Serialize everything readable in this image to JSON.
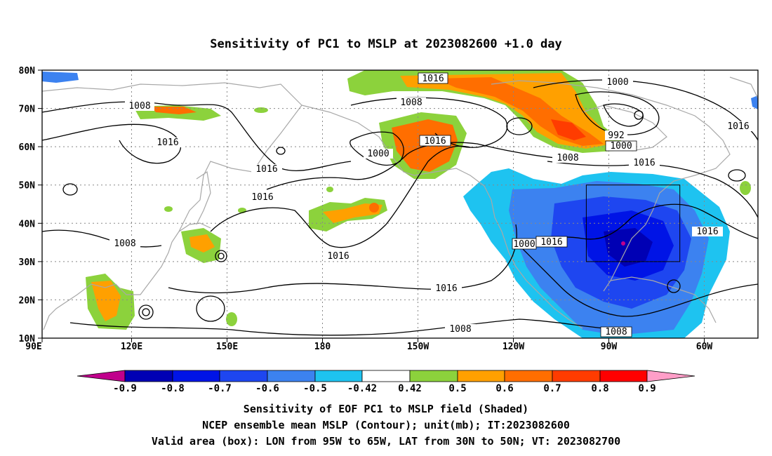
{
  "title": "Sensitivity of PC1 to MSLP at 2023082600 +1.0 day",
  "map": {
    "lon_ticks": [
      "90E",
      "120E",
      "150E",
      "180",
      "150W",
      "120W",
      "90W",
      "60W"
    ],
    "lat_ticks": [
      "80N",
      "70N",
      "60N",
      "50N",
      "40N",
      "30N",
      "20N",
      "10N"
    ],
    "contour_labels": [
      "1016",
      "1008",
      "1000",
      "1008",
      "1016",
      "1000",
      "992",
      "1000",
      "1016",
      "1016",
      "1008",
      "1016",
      "1016",
      "1016",
      "1008",
      "1016",
      "1016",
      "1000",
      "1016",
      "1016",
      "1008",
      "1008"
    ],
    "valid_box": {
      "lon": [
        "95W",
        "65W"
      ],
      "lat": [
        "30N",
        "50N"
      ]
    }
  },
  "colorbar": {
    "levels": [
      "-0.9",
      "-0.8",
      "-0.7",
      "-0.6",
      "-0.5",
      "-0.42",
      "0.42",
      "0.5",
      "0.6",
      "0.7",
      "0.8",
      "0.9"
    ],
    "colors": [
      "#c0008c",
      "#0000b4",
      "#0014e6",
      "#1e46f0",
      "#3c82f0",
      "#1ec3f0",
      "#00e1ff",
      "#ffffff",
      "#8cd23c",
      "#ffa000",
      "#ff6e00",
      "#ff3c00",
      "#ff0000",
      "#ff9ec8"
    ]
  },
  "footer": [
    "Sensitivity of EOF PC1 to MSLP field (Shaded)",
    "NCEP ensemble mean MSLP (Contour); unit(mb); IT:2023082600",
    "Valid area (box): LON from 95W to 65W, LAT from 30N to 50N; VT: 2023082700"
  ]
}
